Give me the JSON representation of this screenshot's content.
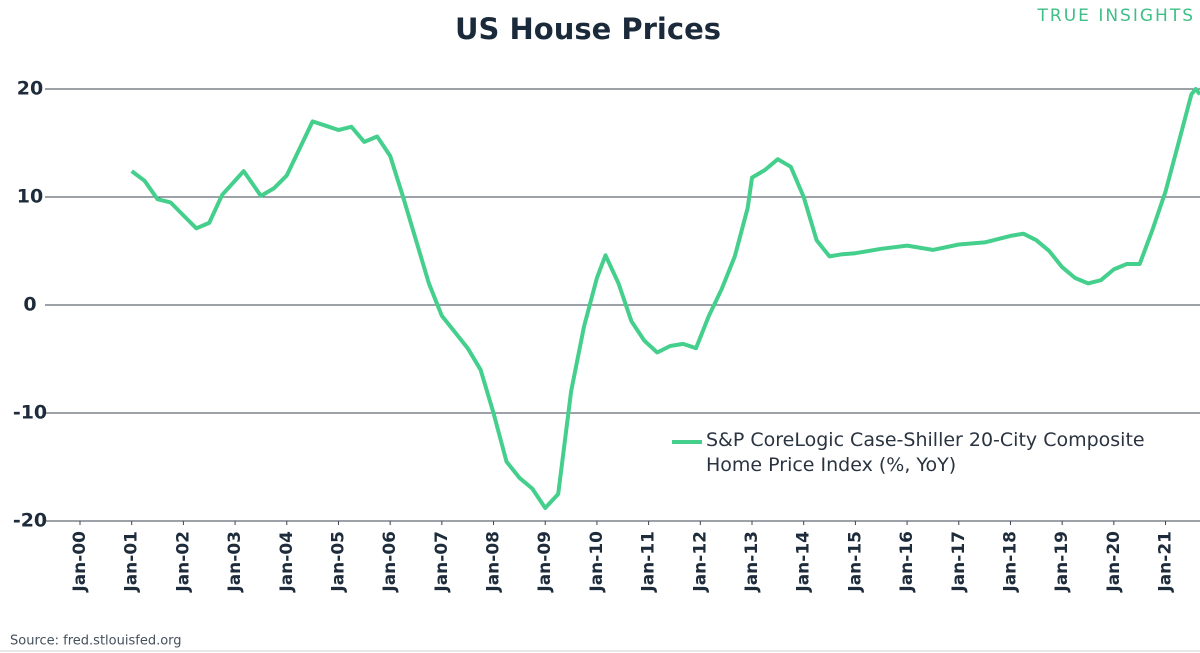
{
  "chart_data": {
    "type": "line",
    "title": "US House Prices",
    "brand": "TRUE INSIGHTS",
    "source": "Source: fred.stlouisfed.org",
    "xlim": [
      "2000-01",
      "2021-09"
    ],
    "ylim": [
      -20,
      20
    ],
    "yticks": [
      20,
      10,
      0,
      -10,
      -20
    ],
    "grid": true,
    "xticks": [
      {
        "value": "2000-01",
        "label": "Jan-00"
      },
      {
        "value": "2001-01",
        "label": "Jan-01"
      },
      {
        "value": "2002-01",
        "label": "Jan-02"
      },
      {
        "value": "2003-01",
        "label": "Jan-03"
      },
      {
        "value": "2004-01",
        "label": "Jan-04"
      },
      {
        "value": "2005-01",
        "label": "Jan-05"
      },
      {
        "value": "2006-01",
        "label": "Jan-06"
      },
      {
        "value": "2007-01",
        "label": "Jan-07"
      },
      {
        "value": "2008-01",
        "label": "Jan-08"
      },
      {
        "value": "2009-01",
        "label": "Jan-09"
      },
      {
        "value": "2010-01",
        "label": "Jan-10"
      },
      {
        "value": "2011-01",
        "label": "Jan-11"
      },
      {
        "value": "2012-01",
        "label": "Jan-12"
      },
      {
        "value": "2013-01",
        "label": "Jan-13"
      },
      {
        "value": "2014-01",
        "label": "Jan-14"
      },
      {
        "value": "2015-01",
        "label": "Jan-15"
      },
      {
        "value": "2016-01",
        "label": "Jan-16"
      },
      {
        "value": "2017-01",
        "label": "Jan-17"
      },
      {
        "value": "2018-01",
        "label": "Jan-18"
      },
      {
        "value": "2019-01",
        "label": "Jan-19"
      },
      {
        "value": "2020-01",
        "label": "Jan-20"
      },
      {
        "value": "2021-01",
        "label": "Jan-21"
      }
    ],
    "legend": "lower right",
    "x": [
      "2001-01",
      "2001-04",
      "2001-07",
      "2001-10",
      "2002-01",
      "2002-04",
      "2002-07",
      "2002-10",
      "2003-03",
      "2003-07",
      "2003-10",
      "2004-01",
      "2004-04",
      "2004-07",
      "2004-10",
      "2005-01",
      "2005-04",
      "2005-07",
      "2005-10",
      "2006-01",
      "2006-04",
      "2006-07",
      "2006-10",
      "2007-01",
      "2007-04",
      "2007-07",
      "2007-10",
      "2008-01",
      "2008-04",
      "2008-07",
      "2008-10",
      "2009-01",
      "2009-04",
      "2009-07",
      "2009-10",
      "2010-01",
      "2010-03",
      "2010-06",
      "2010-09",
      "2010-12",
      "2011-03",
      "2011-06",
      "2011-09",
      "2011-12",
      "2012-03",
      "2012-06",
      "2012-09",
      "2012-12",
      "2013-01",
      "2013-04",
      "2013-07",
      "2013-10",
      "2014-01",
      "2014-04",
      "2014-07",
      "2014-10",
      "2015-01",
      "2015-07",
      "2016-01",
      "2016-07",
      "2017-01",
      "2017-07",
      "2018-01",
      "2018-04",
      "2018-07",
      "2018-10",
      "2019-01",
      "2019-04",
      "2019-07",
      "2019-10",
      "2020-01",
      "2020-04",
      "2020-07",
      "2020-10",
      "2021-01",
      "2021-04",
      "2021-07",
      "2021-08",
      "2021-09"
    ],
    "series": [
      {
        "name": "S&P CoreLogic Case-Shiller 20-City Composite Home Price Index (%, YoY)",
        "color": "#45cf8c",
        "values": [
          12.4,
          11.5,
          9.8,
          9.5,
          8.3,
          7.1,
          7.6,
          10.2,
          12.4,
          10.1,
          10.8,
          12.0,
          14.5,
          17.0,
          16.6,
          16.2,
          16.5,
          15.1,
          15.6,
          13.8,
          10.0,
          6.0,
          2.0,
          -1.0,
          -2.5,
          -4.0,
          -6.0,
          -10.0,
          -14.5,
          -16.0,
          -17.0,
          -18.8,
          -17.5,
          -8.0,
          -2.0,
          2.5,
          4.6,
          2.0,
          -1.5,
          -3.3,
          -4.4,
          -3.8,
          -3.6,
          -4.0,
          -1.0,
          1.5,
          4.5,
          9.0,
          11.8,
          12.5,
          13.5,
          12.8,
          10.0,
          6.0,
          4.5,
          4.7,
          4.8,
          5.2,
          5.5,
          5.1,
          5.6,
          5.8,
          6.4,
          6.6,
          6.0,
          5.0,
          3.5,
          2.5,
          2.0,
          2.3,
          3.3,
          3.8,
          3.8,
          7.0,
          10.5,
          15.0,
          19.5,
          20.0,
          19.5
        ]
      }
    ]
  }
}
